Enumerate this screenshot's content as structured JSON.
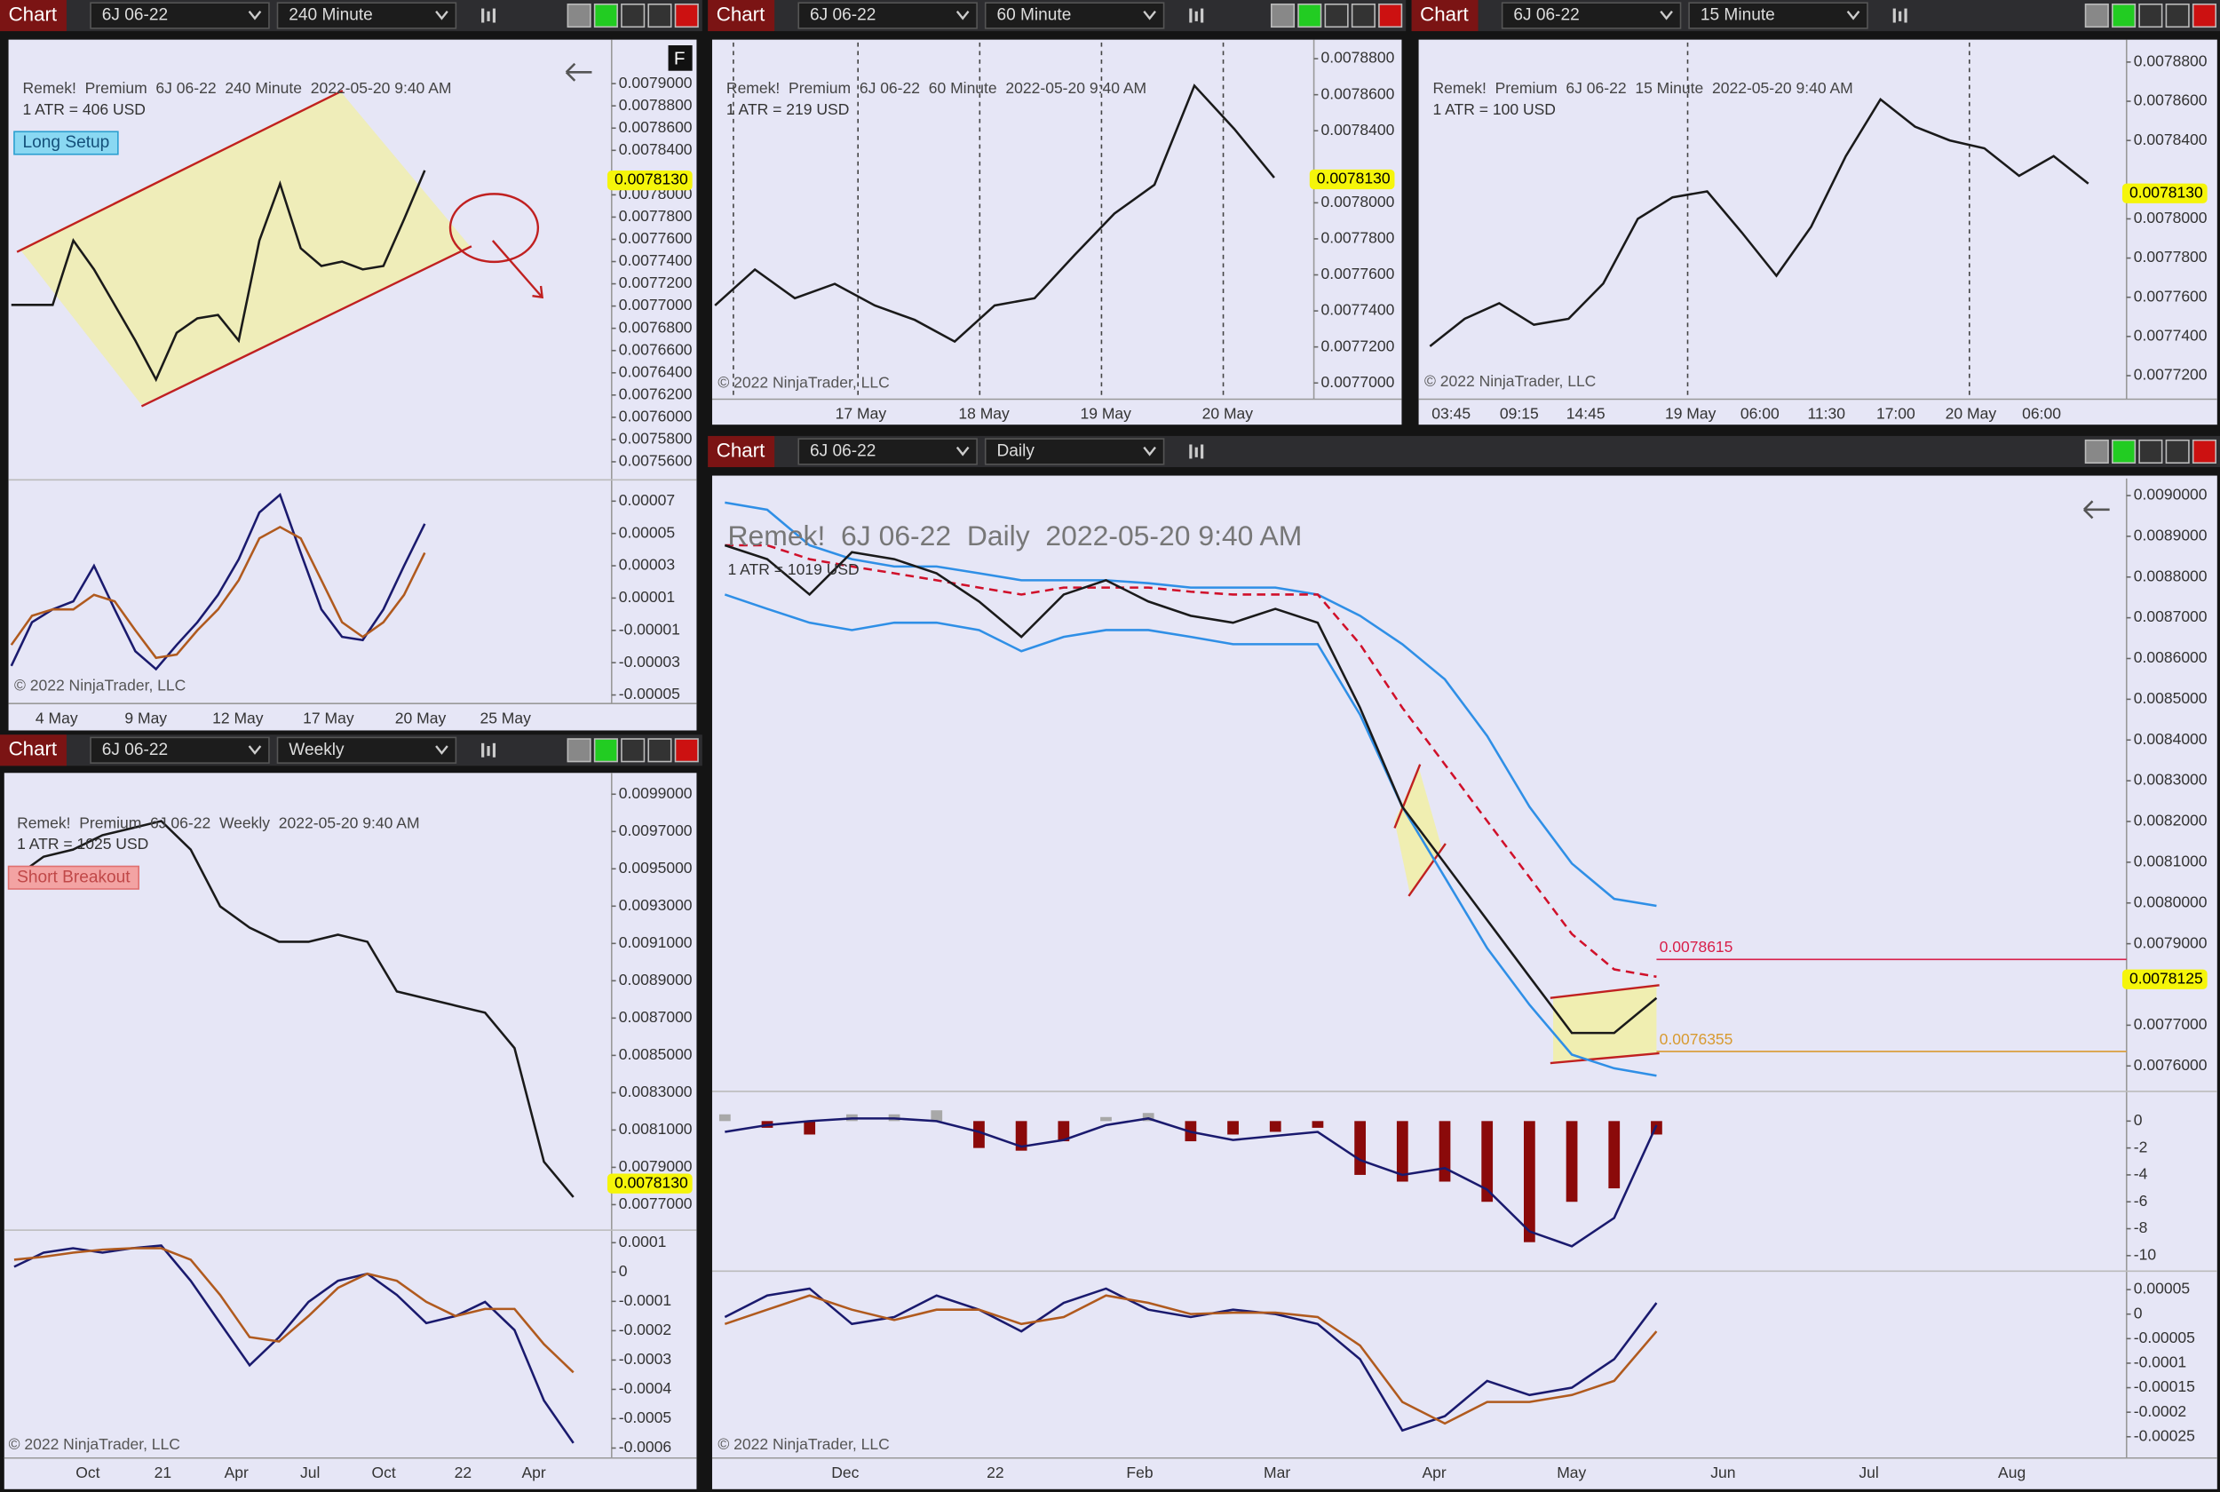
{
  "panels": [
    {
      "tab": "Chart",
      "instrument": "6J 06-22",
      "interval": "240 Minute",
      "type": "line",
      "header": "Remek!  Premium  6J 06-22  240 Minute  2022-05-20 9:40 AM",
      "atr": "1 ATR = 406 USD",
      "tag": "Long Setup",
      "flag": "F",
      "copyright": "© 2022 NinjaTrader, LLC",
      "xticks": [
        "4 May",
        "9 May",
        "12 May",
        "17 May",
        "20 May",
        "25 May"
      ],
      "ylim": [
        0.007545,
        0.007937
      ],
      "yticks": [
        {
          "value": 0.0079,
          "label": "0.0079000"
        },
        {
          "value": 0.00788,
          "label": "0.0078800"
        },
        {
          "value": 0.00786,
          "label": "0.0078600"
        },
        {
          "value": 0.00784,
          "label": "0.0078400"
        },
        {
          "value": 0.0078,
          "label": "0.0078000"
        },
        {
          "value": 0.00778,
          "label": "0.0077800"
        },
        {
          "value": 0.00776,
          "label": "0.0077600"
        },
        {
          "value": 0.00774,
          "label": "0.0077400"
        },
        {
          "value": 0.00772,
          "label": "0.0077200"
        },
        {
          "value": 0.0077,
          "label": "0.0077000"
        },
        {
          "value": 0.00768,
          "label": "0.0076800"
        },
        {
          "value": 0.00766,
          "label": "0.0076600"
        },
        {
          "value": 0.00764,
          "label": "0.0076400"
        },
        {
          "value": 0.00762,
          "label": "0.0076200"
        },
        {
          "value": 0.0076,
          "label": "0.0076000"
        },
        {
          "value": 0.00758,
          "label": "0.0075800"
        },
        {
          "value": 0.00756,
          "label": "0.0075600"
        }
      ],
      "last": {
        "value": 0.007813,
        "label": "0.0078130"
      },
      "series": [
        {
          "color": "#1a1a1a",
          "values": [
            0.007701,
            0.007701,
            0.007701,
            0.007759,
            0.007733,
            0.007701,
            0.007669,
            0.007634,
            0.007676,
            0.007689,
            0.007692,
            0.007669,
            0.007759,
            0.00781,
            0.007752,
            0.007736,
            0.00774,
            0.007733,
            0.007736,
            0.007778,
            0.007822
          ]
        }
      ],
      "osc": {
        "ylim": [
          -5.53e-05,
          8.23e-05
        ],
        "yticks": [
          7e-05,
          5e-05,
          3e-05,
          1e-05,
          -1e-05,
          -3e-05,
          -5e-05
        ],
        "series": [
          {
            "color": "#1a1a6e",
            "values": [
              -3.2e-05,
              -5e-06,
              3e-06,
              8e-06,
              3e-05,
              3e-06,
              -2.3e-05,
              -3.4e-05,
              -1.9e-05,
              -5e-06,
              1.2e-05,
              3.4e-05,
              6.3e-05,
              7.4e-05,
              3.8e-05,
              3e-06,
              -1.4e-05,
              -1.6e-05,
              3e-06,
              3e-05,
              5.6e-05
            ]
          },
          {
            "color": "#b05a1e",
            "values": [
              -1.9e-05,
              -1e-06,
              3e-06,
              3e-06,
              1.2e-05,
              8e-06,
              -1e-05,
              -2.7e-05,
              -2.5e-05,
              -1e-05,
              3e-06,
              2.1e-05,
              4.7e-05,
              5.4e-05,
              4.7e-05,
              2.1e-05,
              -5e-06,
              -1.4e-05,
              -5e-06,
              1.2e-05,
              3.8e-05
            ]
          }
        ]
      }
    },
    {
      "tab": "Chart",
      "instrument": "6J 06-22",
      "interval": "60 Minute",
      "type": "line",
      "header": "Remek!  Premium  6J 06-22  60 Minute  2022-05-20 9:40 AM",
      "atr": "1 ATR = 219 USD",
      "copyright": "© 2022 NinjaTrader, LLC",
      "xticks": [
        "17 May",
        "18 May",
        "19 May",
        "20 May"
      ],
      "ylim": [
        0.007691,
        0.007889
      ],
      "yticks": [
        {
          "value": 0.00788,
          "label": "0.0078800"
        },
        {
          "value": 0.00786,
          "label": "0.0078600"
        },
        {
          "value": 0.00784,
          "label": "0.0078400"
        },
        {
          "value": 0.0078,
          "label": "0.0078000"
        },
        {
          "value": 0.00778,
          "label": "0.0077800"
        },
        {
          "value": 0.00776,
          "label": "0.0077600"
        },
        {
          "value": 0.00774,
          "label": "0.0077400"
        },
        {
          "value": 0.00772,
          "label": "0.0077200"
        },
        {
          "value": 0.0077,
          "label": "0.0077000"
        }
      ],
      "last": {
        "value": 0.007813,
        "label": "0.0078130"
      },
      "series": [
        {
          "color": "#1a1a1a",
          "values": [
            0.007743,
            0.007763,
            0.007747,
            0.007755,
            0.007743,
            0.007735,
            0.007723,
            0.007743,
            0.007747,
            0.007771,
            0.007794,
            0.00781,
            0.007865,
            0.007841,
            0.007814
          ]
        }
      ]
    },
    {
      "tab": "Chart",
      "instrument": "6J 06-22",
      "interval": "15 Minute",
      "type": "line",
      "header": "Remek!  Premium  6J 06-22  15 Minute  2022-05-20 9:40 AM",
      "atr": "1 ATR = 100 USD",
      "copyright": "© 2022 NinjaTrader, LLC",
      "xticks": [
        "03:45",
        "09:15",
        "14:45",
        "19 May",
        "06:00",
        "11:30",
        "17:00",
        "20 May",
        "06:00"
      ],
      "ylim": [
        0.007708,
        0.00789
      ],
      "yticks": [
        {
          "value": 0.00788,
          "label": "0.0078800"
        },
        {
          "value": 0.00786,
          "label": "0.0078600"
        },
        {
          "value": 0.00784,
          "label": "0.0078400"
        },
        {
          "value": 0.0078,
          "label": "0.0078000"
        },
        {
          "value": 0.00778,
          "label": "0.0077800"
        },
        {
          "value": 0.00776,
          "label": "0.0077600"
        },
        {
          "value": 0.00774,
          "label": "0.0077400"
        },
        {
          "value": 0.00772,
          "label": "0.0077200"
        }
      ],
      "last": {
        "value": 0.007813,
        "label": "0.0078130"
      },
      "series": [
        {
          "color": "#1a1a1a",
          "values": [
            0.007735,
            0.007749,
            0.007757,
            0.007746,
            0.007749,
            0.007767,
            0.0078,
            0.007811,
            0.007814,
            0.007793,
            0.007771,
            0.007796,
            0.007832,
            0.007861,
            0.007847,
            0.00784,
            0.007836,
            0.007822,
            0.007832,
            0.007818
          ]
        }
      ]
    },
    {
      "tab": "Chart",
      "instrument": "6J 06-22",
      "interval": "Weekly",
      "type": "line",
      "header": "Remek!  Premium  6J 06-22  Weekly  2022-05-20 9:40 AM",
      "atr": "1 ATR = 1025 USD",
      "tag": "Short Breakout",
      "copyright": "© 2022 NinjaTrader, LLC",
      "xticks": [
        "Oct",
        "21",
        "Apr",
        "Jul",
        "Oct",
        "22",
        "Apr"
      ],
      "ylim": [
        0.007571,
        0.009999
      ],
      "yticks": [
        {
          "value": 0.0099,
          "label": "0.0099000"
        },
        {
          "value": 0.0097,
          "label": "0.0097000"
        },
        {
          "value": 0.0095,
          "label": "0.0095000"
        },
        {
          "value": 0.0093,
          "label": "0.0093000"
        },
        {
          "value": 0.0091,
          "label": "0.0091000"
        },
        {
          "value": 0.0089,
          "label": "0.0089000"
        },
        {
          "value": 0.0087,
          "label": "0.0087000"
        },
        {
          "value": 0.0085,
          "label": "0.0085000"
        },
        {
          "value": 0.0083,
          "label": "0.0083000"
        },
        {
          "value": 0.0081,
          "label": "0.0081000"
        },
        {
          "value": 0.0079,
          "label": "0.0079000"
        },
        {
          "value": 0.0077,
          "label": "0.0077000"
        }
      ],
      "last": {
        "value": 0.007813,
        "label": "0.0078130"
      },
      "series": [
        {
          "color": "#1a1a1a",
          "values": [
            0.009451,
            0.009565,
            0.009603,
            0.00968,
            0.009718,
            0.009756,
            0.009603,
            0.009299,
            0.009185,
            0.009109,
            0.009109,
            0.009147,
            0.009109,
            0.008843,
            0.008805,
            0.008767,
            0.008729,
            0.008539,
            0.00793,
            0.00774
          ]
        }
      ],
      "osc": {
        "ylim": [
          -0.000634,
          0.000138
        ],
        "yticks": [
          0.0001,
          0,
          -0.0001,
          -0.0002,
          -0.0003,
          -0.0004,
          -0.0005,
          -0.0006
        ],
        "series": [
          {
            "color": "#1a1a6e",
            "values": [
              1.8e-05,
              6.6e-05,
              8.1e-05,
              6.6e-05,
              8.1e-05,
              9e-05,
              -3e-05,
              -0.000174,
              -0.000318,
              -0.000222,
              -0.000102,
              -3e-05,
              -6e-06,
              -7.8e-05,
              -0.000174,
              -0.00015,
              -0.000102,
              -0.000198,
              -0.000438,
              -0.000583
            ]
          },
          {
            "color": "#b05a1e",
            "values": [
              4.2e-05,
              5.2e-05,
              6.6e-05,
              7.6e-05,
              8.1e-05,
              8.1e-05,
              4.2e-05,
              -7.8e-05,
              -0.000222,
              -0.000237,
              -0.00015,
              -5.4e-05,
              -6e-06,
              -3e-05,
              -0.000102,
              -0.00015,
              -0.000126,
              -0.000126,
              -0.000246,
              -0.000342
            ]
          }
        ]
      }
    },
    {
      "tab": "Chart",
      "instrument": "6J 06-22",
      "interval": "Daily",
      "type": "line",
      "header": "Remek!  6J 06-22  Daily  2022-05-20 9:40 AM",
      "atr": "1 ATR = 1019 USD",
      "copyright": "© 2022 NinjaTrader, LLC",
      "xticks": [
        "Dec",
        "22",
        "Feb",
        "Mar",
        "Apr",
        "May",
        "Jun",
        "Jul",
        "Aug"
      ],
      "ylim": [
        0.007541,
        0.009035
      ],
      "yticks": [
        {
          "value": 0.009,
          "label": "0.0090000"
        },
        {
          "value": 0.0089,
          "label": "0.0089000"
        },
        {
          "value": 0.0088,
          "label": "0.0088000"
        },
        {
          "value": 0.0087,
          "label": "0.0087000"
        },
        {
          "value": 0.0086,
          "label": "0.0086000"
        },
        {
          "value": 0.0085,
          "label": "0.0085000"
        },
        {
          "value": 0.0084,
          "label": "0.0084000"
        },
        {
          "value": 0.0083,
          "label": "0.0083000"
        },
        {
          "value": 0.0082,
          "label": "0.0082000"
        },
        {
          "value": 0.0081,
          "label": "0.0081000"
        },
        {
          "value": 0.008,
          "label": "0.0080000"
        },
        {
          "value": 0.0079,
          "label": "0.0079000"
        },
        {
          "value": 0.0077,
          "label": "0.0077000"
        },
        {
          "value": 0.0076,
          "label": "0.0076000"
        }
      ],
      "last": {
        "value": 0.0078125,
        "label": "0.0078125"
      },
      "levels": [
        {
          "value": 0.0078615,
          "color": "#d8204a"
        },
        {
          "value": 0.0076355,
          "color": "#d89a30"
        }
      ],
      "series": [
        {
          "color": "#2f8fe6",
          "values": [
            0.008983,
            0.008965,
            0.008878,
            0.008844,
            0.008826,
            0.008826,
            0.008809,
            0.008792,
            0.008792,
            0.008792,
            0.008785,
            0.008774,
            0.008774,
            0.008774,
            0.008757,
            0.008705,
            0.008635,
            0.008549,
            0.00841,
            0.008236,
            0.008097,
            0.00801,
            0.007993
          ]
        },
        {
          "color": "#2f8fe6",
          "values": [
            0.008757,
            0.008722,
            0.008688,
            0.00867,
            0.008688,
            0.008688,
            0.00867,
            0.008618,
            0.008653,
            0.00867,
            0.00867,
            0.008653,
            0.008635,
            0.008635,
            0.008635,
            0.008462,
            0.008236,
            0.008063,
            0.007889,
            0.00775,
            0.007628,
            0.007594,
            0.007576
          ]
        },
        {
          "color": "#d0102a",
          "dash": true,
          "values": [
            0.008878,
            0.008878,
            0.008844,
            0.008826,
            0.008809,
            0.008792,
            0.008774,
            0.008757,
            0.008774,
            0.008774,
            0.008774,
            0.008764,
            0.008757,
            0.008757,
            0.008757,
            0.008635,
            0.008479,
            0.00834,
            0.008201,
            0.008063,
            0.007924,
            0.007837,
            0.007819
          ]
        },
        {
          "color": "#1a1a1a",
          "values": [
            0.008878,
            0.008844,
            0.008757,
            0.008861,
            0.008844,
            0.008809,
            0.00874,
            0.008653,
            0.008757,
            0.008792,
            0.00874,
            0.008705,
            0.008688,
            0.008722,
            0.008688,
            0.008479,
            0.008236,
            0.008097,
            0.007958,
            0.007819,
            0.007681,
            0.007681,
            0.007767
          ]
        }
      ],
      "hist": {
        "ylim": [
          -11.05,
          2.1
        ],
        "yticks": [
          0,
          -2,
          -4,
          -6,
          -8,
          -10
        ],
        "up_color": "#a8a8a8",
        "down_color": "#8b0a0a",
        "values": [
          0.5,
          -0.5,
          -1,
          0.5,
          0.5,
          0.8,
          -2,
          -2.2,
          -1.5,
          0.3,
          0.6,
          -1.5,
          -1,
          -0.8,
          -0.5,
          -4,
          -4.5,
          -4.5,
          -6,
          -9,
          -6,
          -5,
          -1
        ],
        "line": {
          "color": "#1a1a6e",
          "values": [
            -0.8,
            -0.3,
            0,
            0.2,
            0.2,
            0,
            -0.8,
            -1.9,
            -1.4,
            -0.3,
            0.2,
            -0.8,
            -1.4,
            -1.1,
            -0.8,
            -2.9,
            -4.0,
            -3.5,
            -5.1,
            -8.2,
            -9.3,
            -7.2,
            -0.3
          ]
        }
      },
      "osc": {
        "ylim": [
          -0.0002934,
          8.47e-05
        ],
        "yticks": [
          5e-05,
          0,
          -5e-05,
          -0.0001,
          -0.00015,
          -0.0002,
          -0.00025
        ],
        "series": [
          {
            "color": "#1a1a6e",
            "values": [
              -6e-06,
              3.8e-05,
              5.2e-05,
              -2e-05,
              -6e-06,
              3.8e-05,
              9e-06,
              -3.5e-05,
              2.3e-05,
              5.2e-05,
              9e-06,
              -6e-06,
              9e-06,
              0,
              -2e-05,
              -9.2e-05,
              -0.000237,
              -0.000208,
              -0.000136,
              -0.000165,
              -0.00015,
              -9.2e-05,
              2.3e-05
            ]
          },
          {
            "color": "#b05a1e",
            "values": [
              -2e-05,
              9e-06,
              3.8e-05,
              9e-06,
              -1.2e-05,
              9e-06,
              9e-06,
              -2e-05,
              -6e-06,
              3.8e-05,
              2.3e-05,
              0,
              3e-06,
              3e-06,
              -6e-06,
              -6.4e-05,
              -0.000179,
              -0.000223,
              -0.000179,
              -0.000179,
              -0.000165,
              -0.000136,
              -3.5e-05
            ]
          }
        ]
      }
    }
  ]
}
